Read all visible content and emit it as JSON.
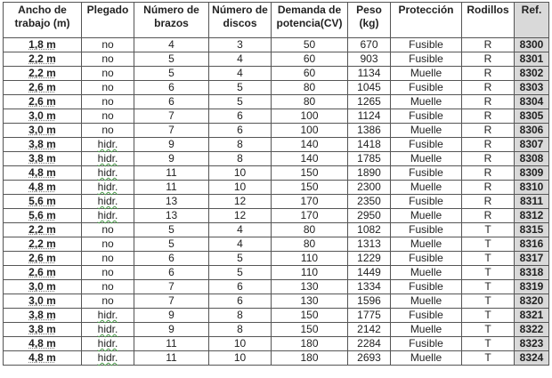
{
  "headers": [
    "Ancho de trabajo (m)",
    "Plegado",
    "Número de brazos",
    "Número de discos",
    "Demanda de potencia(CV)",
    "Peso (kg)",
    "Protección",
    "Rodillos",
    "Ref."
  ],
  "rows": [
    [
      "1,8 m",
      "no",
      "4",
      "3",
      "50",
      "670",
      "Fusible",
      "R",
      "8300"
    ],
    [
      "2,2 m",
      "no",
      "5",
      "4",
      "60",
      "903",
      "Fusible",
      "R",
      "8301"
    ],
    [
      "2,2 m",
      "no",
      "5",
      "4",
      "60",
      "1134",
      "Muelle",
      "R",
      "8302"
    ],
    [
      "2,6 m",
      "no",
      "6",
      "5",
      "80",
      "1045",
      "Fusible",
      "R",
      "8303"
    ],
    [
      "2,6 m",
      "no",
      "6",
      "5",
      "80",
      "1265",
      "Muelle",
      "R",
      "8304"
    ],
    [
      "3,0 m",
      "no",
      "7",
      "6",
      "100",
      "1124",
      "Fusible",
      "R",
      "8305"
    ],
    [
      "3,0 m",
      "no",
      "7",
      "6",
      "100",
      "1386",
      "Muelle",
      "R",
      "8306"
    ],
    [
      "3,8 m",
      "hidr.",
      "9",
      "8",
      "140",
      "1418",
      "Fusible",
      "R",
      "8307"
    ],
    [
      "3,8 m",
      "hidr.",
      "9",
      "8",
      "140",
      "1785",
      "Muelle",
      "R",
      "8308"
    ],
    [
      "4,8 m",
      "hidr.",
      "11",
      "10",
      "150",
      "1890",
      "Fusible",
      "R",
      "8309"
    ],
    [
      "4,8 m",
      "hidr.",
      "11",
      "10",
      "150",
      "2300",
      "Muelle",
      "R",
      "8310"
    ],
    [
      "5,6 m",
      "hidr.",
      "13",
      "12",
      "170",
      "2350",
      "Fusible",
      "R",
      "8311"
    ],
    [
      "5,6 m",
      "hidr.",
      "13",
      "12",
      "170",
      "2950",
      "Muelle",
      "R",
      "8312"
    ],
    [
      "2,2 m",
      "no",
      "5",
      "4",
      "80",
      "1082",
      "Fusible",
      "T",
      "8315"
    ],
    [
      "2,2 m",
      "no",
      "5",
      "4",
      "80",
      "1313",
      "Muelle",
      "T",
      "8316"
    ],
    [
      "2,6 m",
      "no",
      "6",
      "5",
      "110",
      "1229",
      "Fusible",
      "T",
      "8317"
    ],
    [
      "2,6 m",
      "no",
      "6",
      "5",
      "110",
      "1449",
      "Muelle",
      "T",
      "8318"
    ],
    [
      "3,0 m",
      "no",
      "7",
      "6",
      "130",
      "1334",
      "Fusible",
      "T",
      "8319"
    ],
    [
      "3,0 m",
      "no",
      "7",
      "6",
      "130",
      "1596",
      "Muelle",
      "T",
      "8320"
    ],
    [
      "3,8 m",
      "hidr.",
      "9",
      "8",
      "150",
      "1775",
      "Fusible",
      "T",
      "8321"
    ],
    [
      "3,8 m",
      "hidr.",
      "9",
      "8",
      "150",
      "2142",
      "Muelle",
      "T",
      "8322"
    ],
    [
      "4,8 m",
      "hidr.",
      "11",
      "10",
      "180",
      "2284",
      "Fusible",
      "T",
      "8323"
    ],
    [
      "4,8 m",
      "hidr.",
      "11",
      "10",
      "180",
      "2693",
      "Muelle",
      "T",
      "8324"
    ]
  ]
}
